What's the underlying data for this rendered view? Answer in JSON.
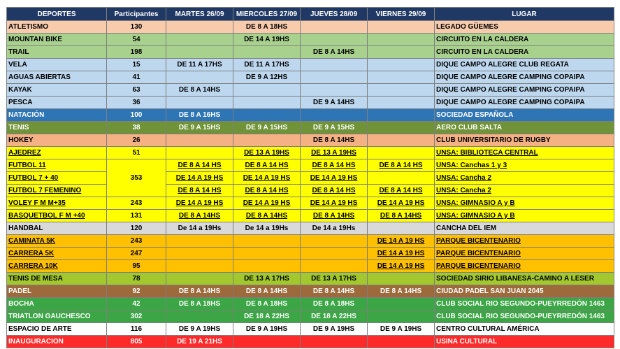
{
  "headers": [
    "DEPORTES",
    "Participantes",
    "MARTES 26/09",
    "MIERCOLES 27/09",
    "JUEVES 28/09",
    "VIERNES 29/09",
    "LUGAR"
  ],
  "colors": {
    "header": "#1f3864",
    "pink": "#f8cbad",
    "green_light": "#a9d18e",
    "blue_light": "#bdd7ee",
    "blue_dark": "#2e75b6",
    "olive": "#70933a",
    "orange_light": "#f4b183",
    "yellow": "#ffff00",
    "gray": "#d9d9d9",
    "orange": "#ffc000",
    "yellow_green": "#a3c72e",
    "brown": "#9c6a3b",
    "green": "#3ca546",
    "white": "#ffffff",
    "red": "#ff2a2a"
  },
  "rows": [
    {
      "deporte": "ATLETISMO",
      "participantes": "130",
      "martes": "",
      "miercoles": "DE 8 A 18HS",
      "jueves": "",
      "viernes": "",
      "lugar": "LEGADO GÜEMES",
      "bg": "#f8cbad",
      "fg": "#000000",
      "underline": false
    },
    {
      "deporte": "MOUNTAN BIKE",
      "participantes": "54",
      "martes": "",
      "miercoles": "DE 14 A 19HS",
      "jueves": "",
      "viernes": "",
      "lugar": "CIRCUITO EN LA CALDERA",
      "bg": "#a9d18e",
      "fg": "#000000",
      "underline": false
    },
    {
      "deporte": "TRAIL",
      "participantes": "198",
      "martes": "",
      "miercoles": "",
      "jueves": "DE 8 A 14HS",
      "viernes": "",
      "lugar": "CIRCUITO EN LA CALDERA",
      "bg": "#a9d18e",
      "fg": "#000000",
      "underline": false
    },
    {
      "deporte": "VELA",
      "participantes": "15",
      "martes": "DE 11 A 17HS",
      "miercoles": "DE 11 A 17HS",
      "jueves": "",
      "viernes": "",
      "lugar": "DIQUE CAMPO ALEGRE CLUB REGATA",
      "bg": "#bdd7ee",
      "fg": "#000000",
      "underline": false
    },
    {
      "deporte": "AGUAS ABIERTAS",
      "participantes": "41",
      "martes": "",
      "miercoles": "DE 9 A 12HS",
      "jueves": "",
      "viernes": "",
      "lugar": "DIQUE CAMPO ALEGRE CAMPING COPAIPA",
      "bg": "#bdd7ee",
      "fg": "#000000",
      "underline": false
    },
    {
      "deporte": "KAYAK",
      "participantes": "63",
      "martes": "DE 8 A 14HS",
      "miercoles": "",
      "jueves": "",
      "viernes": "",
      "lugar": "DIQUE CAMPO ALEGRE CAMPING COPAIPA",
      "bg": "#bdd7ee",
      "fg": "#000000",
      "underline": false
    },
    {
      "deporte": "PESCA",
      "participantes": "36",
      "martes": "",
      "miercoles": "",
      "jueves": "DE 9 A 14HS",
      "viernes": "",
      "lugar": "DIQUE CAMPO ALEGRE CAMPING COPAIPA",
      "bg": "#bdd7ee",
      "fg": "#000000",
      "underline": false
    },
    {
      "deporte": "NATACIÓN",
      "participantes": "100",
      "martes": "DE 8 A 16HS",
      "miercoles": "",
      "jueves": "",
      "viernes": "",
      "lugar": "SOCIEDAD ESPAÑOLA",
      "bg": "#2e75b6",
      "fg": "#ffffff",
      "underline": false
    },
    {
      "deporte": "TENIS",
      "participantes": "38",
      "martes": "DE 9 A 15HS",
      "miercoles": "DE 9 A 15HS",
      "jueves": "DE 9 A 15HS",
      "viernes": "",
      "lugar": "AERO CLUB SALTA",
      "bg": "#70933a",
      "fg": "#ffffff",
      "underline": false
    },
    {
      "deporte": "HOKEY",
      "participantes": "26",
      "martes": "",
      "miercoles": "",
      "jueves": "DE 8 A 14HS",
      "viernes": "",
      "lugar": "CLUB UNIVERSITARIO DE RUGBY",
      "bg": "#f4b183",
      "fg": "#000000",
      "underline": false
    },
    {
      "deporte": "AJEDREZ",
      "participantes": "51",
      "martes": "",
      "miercoles": "DE 13 A 19HS",
      "jueves": "DE 13 A 19HS",
      "viernes": "",
      "lugar": "UNSA: BIBLIOTECA CENTRAL",
      "bg": "#ffff00",
      "fg": "#000000",
      "underline": true
    },
    {
      "deporte": "FUTBOL 11",
      "participantes": "",
      "martes": "DE 8 A 14 HS",
      "miercoles": "DE 8 A 14 HS",
      "jueves": "DE 8 A 14 HS",
      "viernes": "DE 8 A 14 HS",
      "lugar": "UNSA: Canchas 1 y 3",
      "bg": "#ffff00",
      "fg": "#000000",
      "underline": true
    },
    {
      "deporte": "FUTBOL 7 + 40",
      "participantes": "353",
      "martes": "DE 14 A 19 HS",
      "miercoles": "DE 14 A 19 HS",
      "jueves": "DE 14 A 19 HS",
      "viernes": "",
      "lugar": "UNSA: Cancha 2",
      "bg": "#ffff00",
      "fg": "#000000",
      "underline": true
    },
    {
      "deporte": "FUTBOL 7 FEMENINO",
      "participantes": "",
      "martes": "DE 8 A 14 HS",
      "miercoles": "DE 8 A 14 HS",
      "jueves": "DE 8 A 14 HS",
      "viernes": "DE 8 A 14 HS",
      "lugar": "UNSA: Cancha 2",
      "bg": "#ffff00",
      "fg": "#000000",
      "underline": true
    },
    {
      "deporte": "VOLEY  F M M+35",
      "participantes": "243",
      "martes": "DE 14 A 19 HS",
      "miercoles": "DE 14 A 19 HS",
      "jueves": "DE 14 A 19 HS",
      "viernes": "DE 14 A 19 HS",
      "lugar": "UNSA: GIMNASIO A y B",
      "bg": "#ffff00",
      "fg": "#000000",
      "underline": true
    },
    {
      "deporte": "BASQUETBOL F M +40",
      "participantes": "131",
      "martes": "DE 8 A 14HS",
      "miercoles": "DE 8 A 14HS",
      "jueves": "DE 8 A 14HS",
      "viernes": "DE 8 A 14HS",
      "lugar": "UNSA: GIMNASIO A y B",
      "bg": "#ffff00",
      "fg": "#000000",
      "underline": true
    },
    {
      "deporte": "HANDBAL",
      "participantes": "120",
      "martes": "De 14 a 19Hs",
      "miercoles": "De 14 a 19Hs",
      "jueves": "De 14 a 19Hs",
      "viernes": "",
      "lugar": "CANCHA DEL IEM",
      "bg": "#d9d9d9",
      "fg": "#000000",
      "underline": false
    },
    {
      "deporte": "CAMINATA 5K",
      "participantes": "243",
      "martes": "",
      "miercoles": "",
      "jueves": "",
      "viernes": "DE 14 A 19 HS",
      "lugar": "PARQUE BICENTENARIO",
      "bg": "#ffc000",
      "fg": "#000000",
      "underline": true
    },
    {
      "deporte": "CARRERA 5K",
      "participantes": "247",
      "martes": "",
      "miercoles": "",
      "jueves": "",
      "viernes": "DE 14 A 19 HS",
      "lugar": "PARQUE BICENTENARIO",
      "bg": "#ffc000",
      "fg": "#000000",
      "underline": true
    },
    {
      "deporte": "CARRERA 10K",
      "participantes": "95",
      "martes": "",
      "miercoles": "",
      "jueves": "",
      "viernes": "DE 14 A 19 HS",
      "lugar": "PARQUE BICENTENARIO",
      "bg": "#ffc000",
      "fg": "#000000",
      "underline": true
    },
    {
      "deporte": "TENIS DE MESA",
      "participantes": "78",
      "martes": "",
      "miercoles": "DE 13 A 17HS",
      "jueves": "DE 13 A 17HS",
      "viernes": "",
      "lugar": "SOCIEDAD SIRIO LIBANESA-CAMINO A LESER",
      "bg": "#a3c72e",
      "fg": "#000000",
      "underline": false
    },
    {
      "deporte": "PADEL",
      "participantes": "92",
      "martes": "DE 8 A 14HS",
      "miercoles": "DE 8 A 14HS",
      "jueves": "DE 8 A 14HS",
      "viernes": "DE 8 A 14HS",
      "lugar": "CIUDAD PADEL  SAN JUAN 2045",
      "bg": "#9c6a3b",
      "fg": "#ffffff",
      "underline": false
    },
    {
      "deporte": "BOCHA",
      "participantes": "42",
      "martes": "DE 8 A 18HS",
      "miercoles": "DE 8 A 18HS",
      "jueves": "DE 8 A 18HS",
      "viernes": "",
      "lugar": "CLUB SOCIAL RIO SEGUNDO-PUEYRREDÓN 1463",
      "bg": "#3ca546",
      "fg": "#ffffff",
      "underline": false
    },
    {
      "deporte": "TRIATLON GAUCHESCO",
      "participantes": "302",
      "martes": "",
      "miercoles": "DE 18 A 22HS",
      "jueves": "DE 18 A 22HS",
      "viernes": "",
      "lugar": "CLUB SOCIAL RIO SEGUNDO-PUEYRREDÓN 1463",
      "bg": "#3ca546",
      "fg": "#ffffff",
      "underline": false
    },
    {
      "deporte": "ESPACIO DE ARTE",
      "participantes": "116",
      "martes": "DE 9 A 19HS",
      "miercoles": "DE 9 A 19HS",
      "jueves": "DE 9 A 19HS",
      "viernes": "DE 9 A 19HS",
      "lugar": "CENTRO CULTURAL AMÉRICA",
      "bg": "#ffffff",
      "fg": "#000000",
      "underline": false
    },
    {
      "deporte": "INAUGURACION",
      "participantes": "805",
      "martes": "DE 19 A 21HS",
      "miercoles": "",
      "jueves": "",
      "viernes": "",
      "lugar": "USINA CULTURAL",
      "bg": "#ff2a2a",
      "fg": "#ffffff",
      "underline": false
    }
  ]
}
